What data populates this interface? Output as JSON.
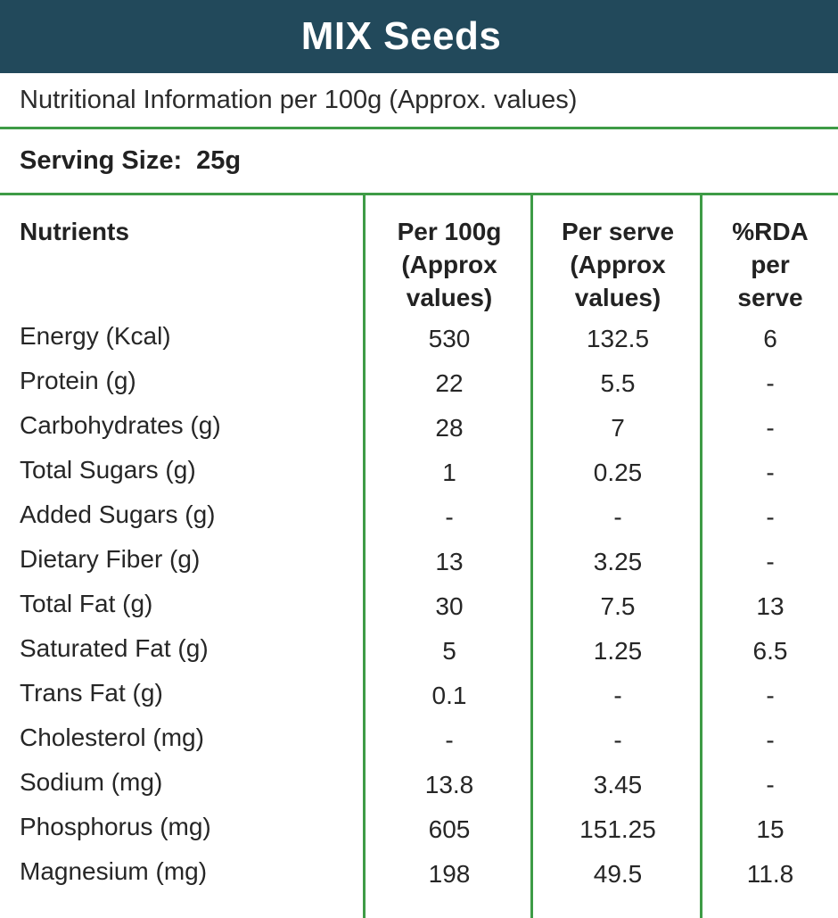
{
  "banner": {
    "title": "MIX Seeds"
  },
  "subtitle": "Nutritional Information per 100g (Approx. values)",
  "serving": {
    "label": "Serving Size:",
    "value": "25g"
  },
  "colors": {
    "banner_bg": "#22495B",
    "divider_green": "#3E9B46",
    "text": "#262626"
  },
  "table": {
    "columns": [
      "Nutrients",
      "Per 100g\n(Approx\nvalues)",
      "Per serve\n(Approx\nvalues)",
      "%RDA\nper\nserve"
    ],
    "rows": [
      {
        "nutrient": "Energy (Kcal)",
        "per_100g": "530",
        "per_serve": "132.5",
        "rda_per_serve": "6"
      },
      {
        "nutrient": "Protein (g)",
        "per_100g": "22",
        "per_serve": "5.5",
        "rda_per_serve": "-"
      },
      {
        "nutrient": "Carbohydrates (g)",
        "per_100g": "28",
        "per_serve": "7",
        "rda_per_serve": "-"
      },
      {
        "nutrient": "Total Sugars (g)",
        "per_100g": "1",
        "per_serve": "0.25",
        "rda_per_serve": "-"
      },
      {
        "nutrient": "Added Sugars (g)",
        "per_100g": "-",
        "per_serve": "-",
        "rda_per_serve": "-"
      },
      {
        "nutrient": "Dietary Fiber (g)",
        "per_100g": "13",
        "per_serve": "3.25",
        "rda_per_serve": "-"
      },
      {
        "nutrient": "Total Fat (g)",
        "per_100g": "30",
        "per_serve": "7.5",
        "rda_per_serve": "13"
      },
      {
        "nutrient": "Saturated Fat (g)",
        "per_100g": "5",
        "per_serve": "1.25",
        "rda_per_serve": "6.5"
      },
      {
        "nutrient": "Trans Fat (g)",
        "per_100g": "0.1",
        "per_serve": "-",
        "rda_per_serve": "-"
      },
      {
        "nutrient": "Cholesterol (mg)",
        "per_100g": "-",
        "per_serve": "-",
        "rda_per_serve": "-"
      },
      {
        "nutrient": "Sodium (mg)",
        "per_100g": "13.8",
        "per_serve": "3.45",
        "rda_per_serve": "-"
      },
      {
        "nutrient": "Phosphorus (mg)",
        "per_100g": "605",
        "per_serve": "151.25",
        "rda_per_serve": "15"
      },
      {
        "nutrient": "Magnesium (mg)",
        "per_100g": "198",
        "per_serve": "49.5",
        "rda_per_serve": "11.8"
      }
    ]
  }
}
